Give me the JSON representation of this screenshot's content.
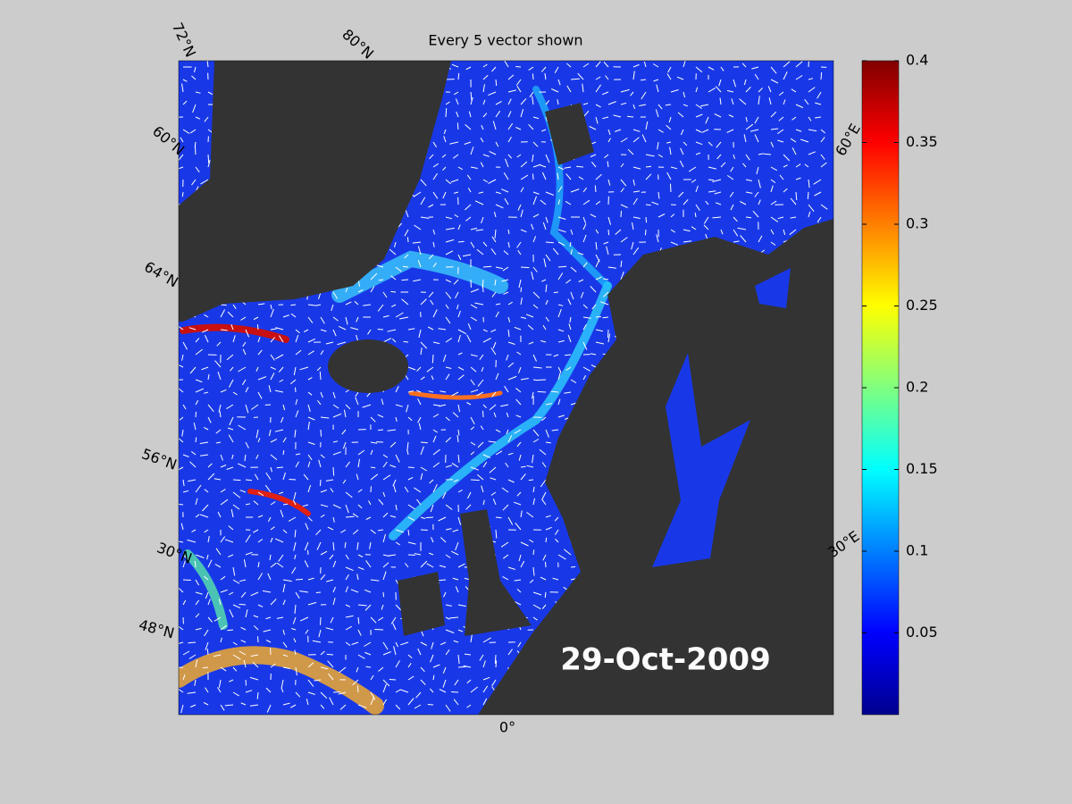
{
  "title": "Every 5 vector shown",
  "date_label": "29-Oct-2009",
  "map": {
    "graticule_labels": [
      "72°N",
      "80°N",
      "60°N",
      "64°N",
      "56°N",
      "30°N",
      "48°N",
      "0°",
      "30°E",
      "60°E"
    ]
  },
  "colorbar": {
    "lim": [
      0,
      0.4
    ],
    "ticks": [
      0.05,
      0.1,
      0.15,
      0.2,
      0.25,
      0.3,
      0.35,
      0.4
    ]
  }
}
